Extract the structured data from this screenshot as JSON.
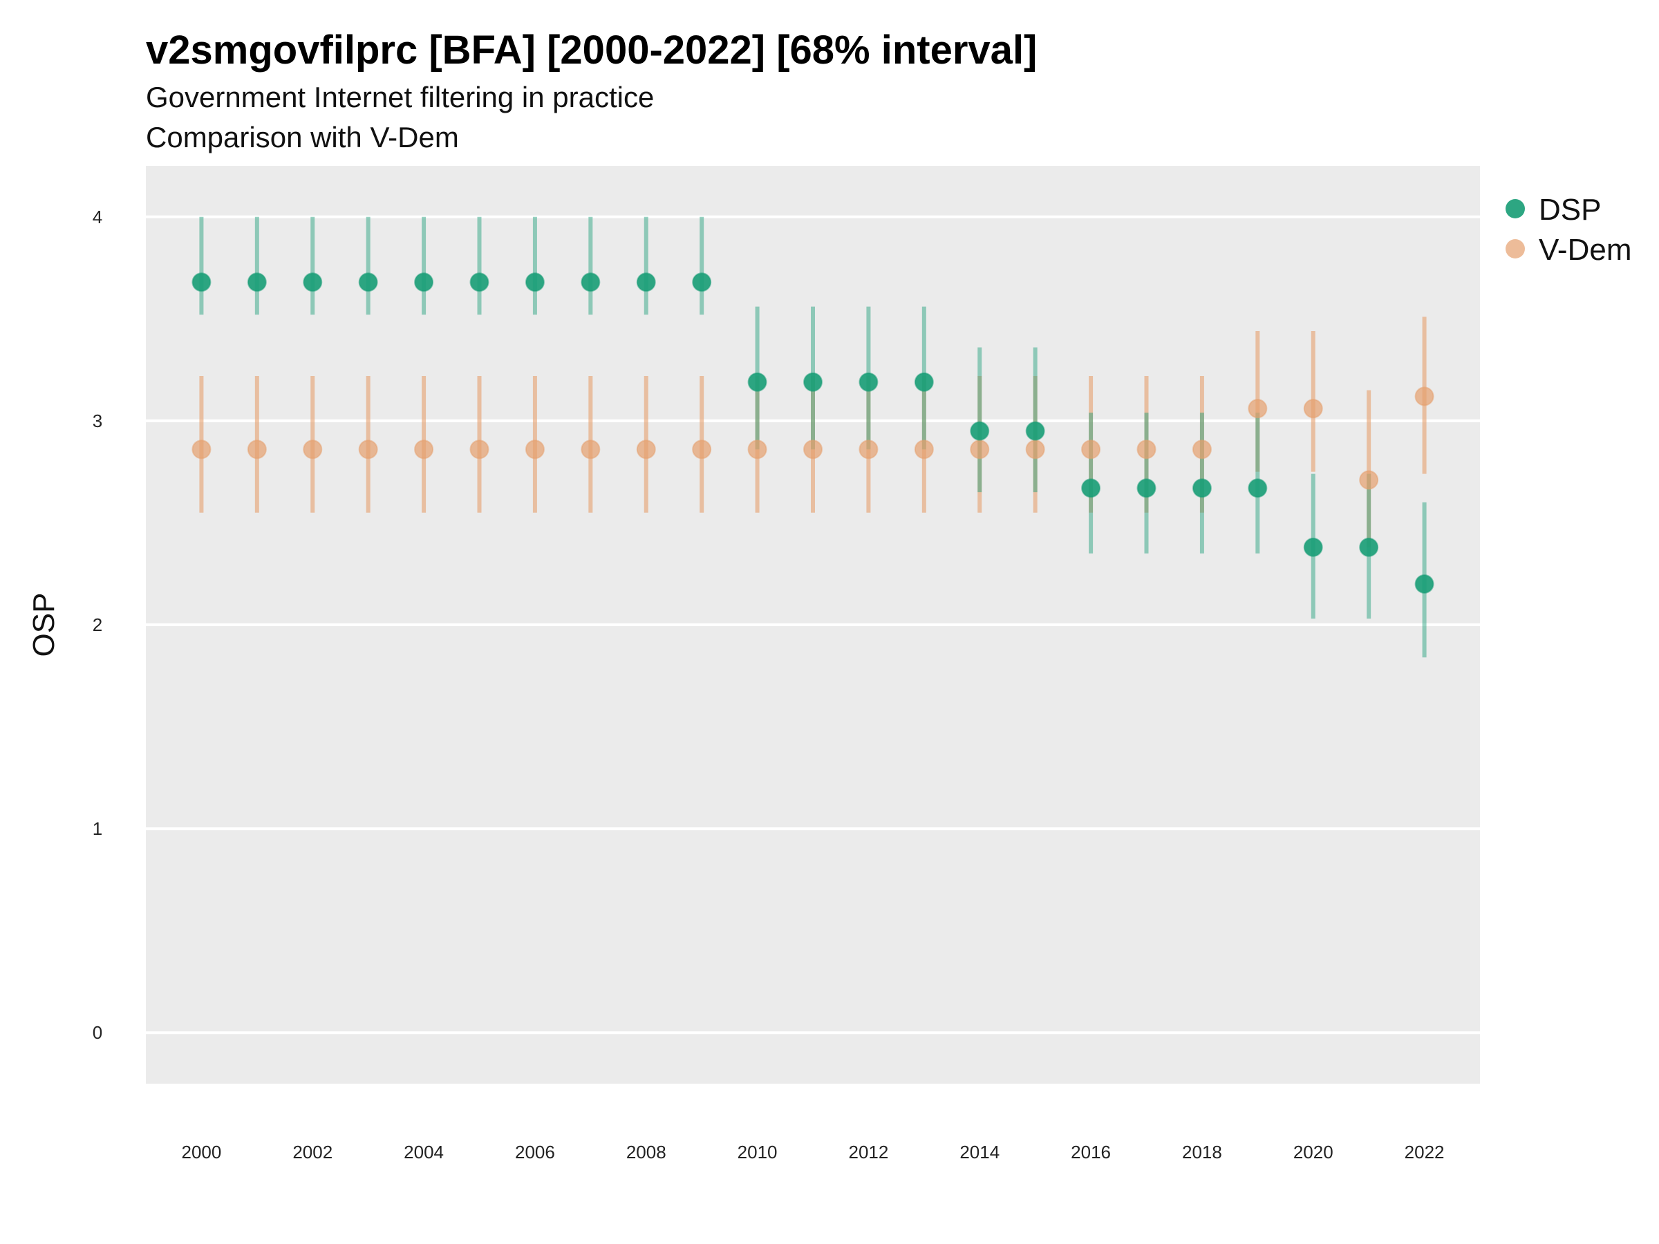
{
  "chart_data": {
    "type": "scatter",
    "title": "v2smgovfilprc [BFA] [2000-2022] [68% interval]",
    "subtitle": "Government Internet filtering in practice",
    "subtitle2": "Comparison with V-Dem",
    "xlabel": "",
    "ylabel": "OSP",
    "xlim": [
      1999.0,
      2023.0
    ],
    "ylim": [
      -0.25,
      4.25
    ],
    "y_ticks": [
      0,
      1,
      2,
      3,
      4
    ],
    "x_ticks": [
      2000,
      2002,
      2004,
      2006,
      2008,
      2010,
      2012,
      2014,
      2016,
      2018,
      2020,
      2022
    ],
    "grid": true,
    "legend_position": "right",
    "x": [
      2000,
      2001,
      2002,
      2003,
      2004,
      2005,
      2006,
      2007,
      2008,
      2009,
      2010,
      2011,
      2012,
      2013,
      2014,
      2015,
      2016,
      2017,
      2018,
      2019,
      2020,
      2021,
      2022
    ],
    "series": [
      {
        "name": "V-Dem",
        "color": "#E6A06E",
        "values": [
          2.86,
          2.86,
          2.86,
          2.86,
          2.86,
          2.86,
          2.86,
          2.86,
          2.86,
          2.86,
          2.86,
          2.86,
          2.86,
          2.86,
          2.86,
          2.86,
          2.86,
          2.86,
          2.86,
          3.06,
          3.06,
          2.71,
          3.12
        ],
        "lower": [
          2.55,
          2.55,
          2.55,
          2.55,
          2.55,
          2.55,
          2.55,
          2.55,
          2.55,
          2.55,
          2.55,
          2.55,
          2.55,
          2.55,
          2.55,
          2.55,
          2.55,
          2.55,
          2.55,
          2.75,
          2.75,
          2.38,
          2.74
        ],
        "upper": [
          3.22,
          3.22,
          3.22,
          3.22,
          3.22,
          3.22,
          3.22,
          3.22,
          3.22,
          3.22,
          3.22,
          3.22,
          3.22,
          3.22,
          3.22,
          3.22,
          3.22,
          3.22,
          3.22,
          3.44,
          3.44,
          3.15,
          3.51
        ]
      },
      {
        "name": "DSP",
        "color": "#1B9E77",
        "values": [
          3.68,
          3.68,
          3.68,
          3.68,
          3.68,
          3.68,
          3.68,
          3.68,
          3.68,
          3.68,
          3.19,
          3.19,
          3.19,
          3.19,
          2.95,
          2.95,
          2.67,
          2.67,
          2.67,
          2.67,
          2.38,
          2.38,
          2.2
        ],
        "lower": [
          3.52,
          3.52,
          3.52,
          3.52,
          3.52,
          3.52,
          3.52,
          3.52,
          3.52,
          3.52,
          2.86,
          2.86,
          2.86,
          2.86,
          2.65,
          2.65,
          2.35,
          2.35,
          2.35,
          2.35,
          2.03,
          2.03,
          1.84
        ],
        "upper": [
          4.0,
          4.0,
          4.0,
          4.0,
          4.0,
          4.0,
          4.0,
          4.0,
          4.0,
          4.0,
          3.56,
          3.56,
          3.56,
          3.56,
          3.36,
          3.36,
          3.04,
          3.04,
          3.04,
          3.04,
          2.74,
          2.74,
          2.6
        ]
      }
    ],
    "legend": [
      {
        "name": "DSP",
        "color": "#1B9E77"
      },
      {
        "name": "V-Dem",
        "color": "#E6A06E"
      }
    ],
    "panel_color": "#EBEBEB",
    "grid_color": "#FFFFFF"
  }
}
